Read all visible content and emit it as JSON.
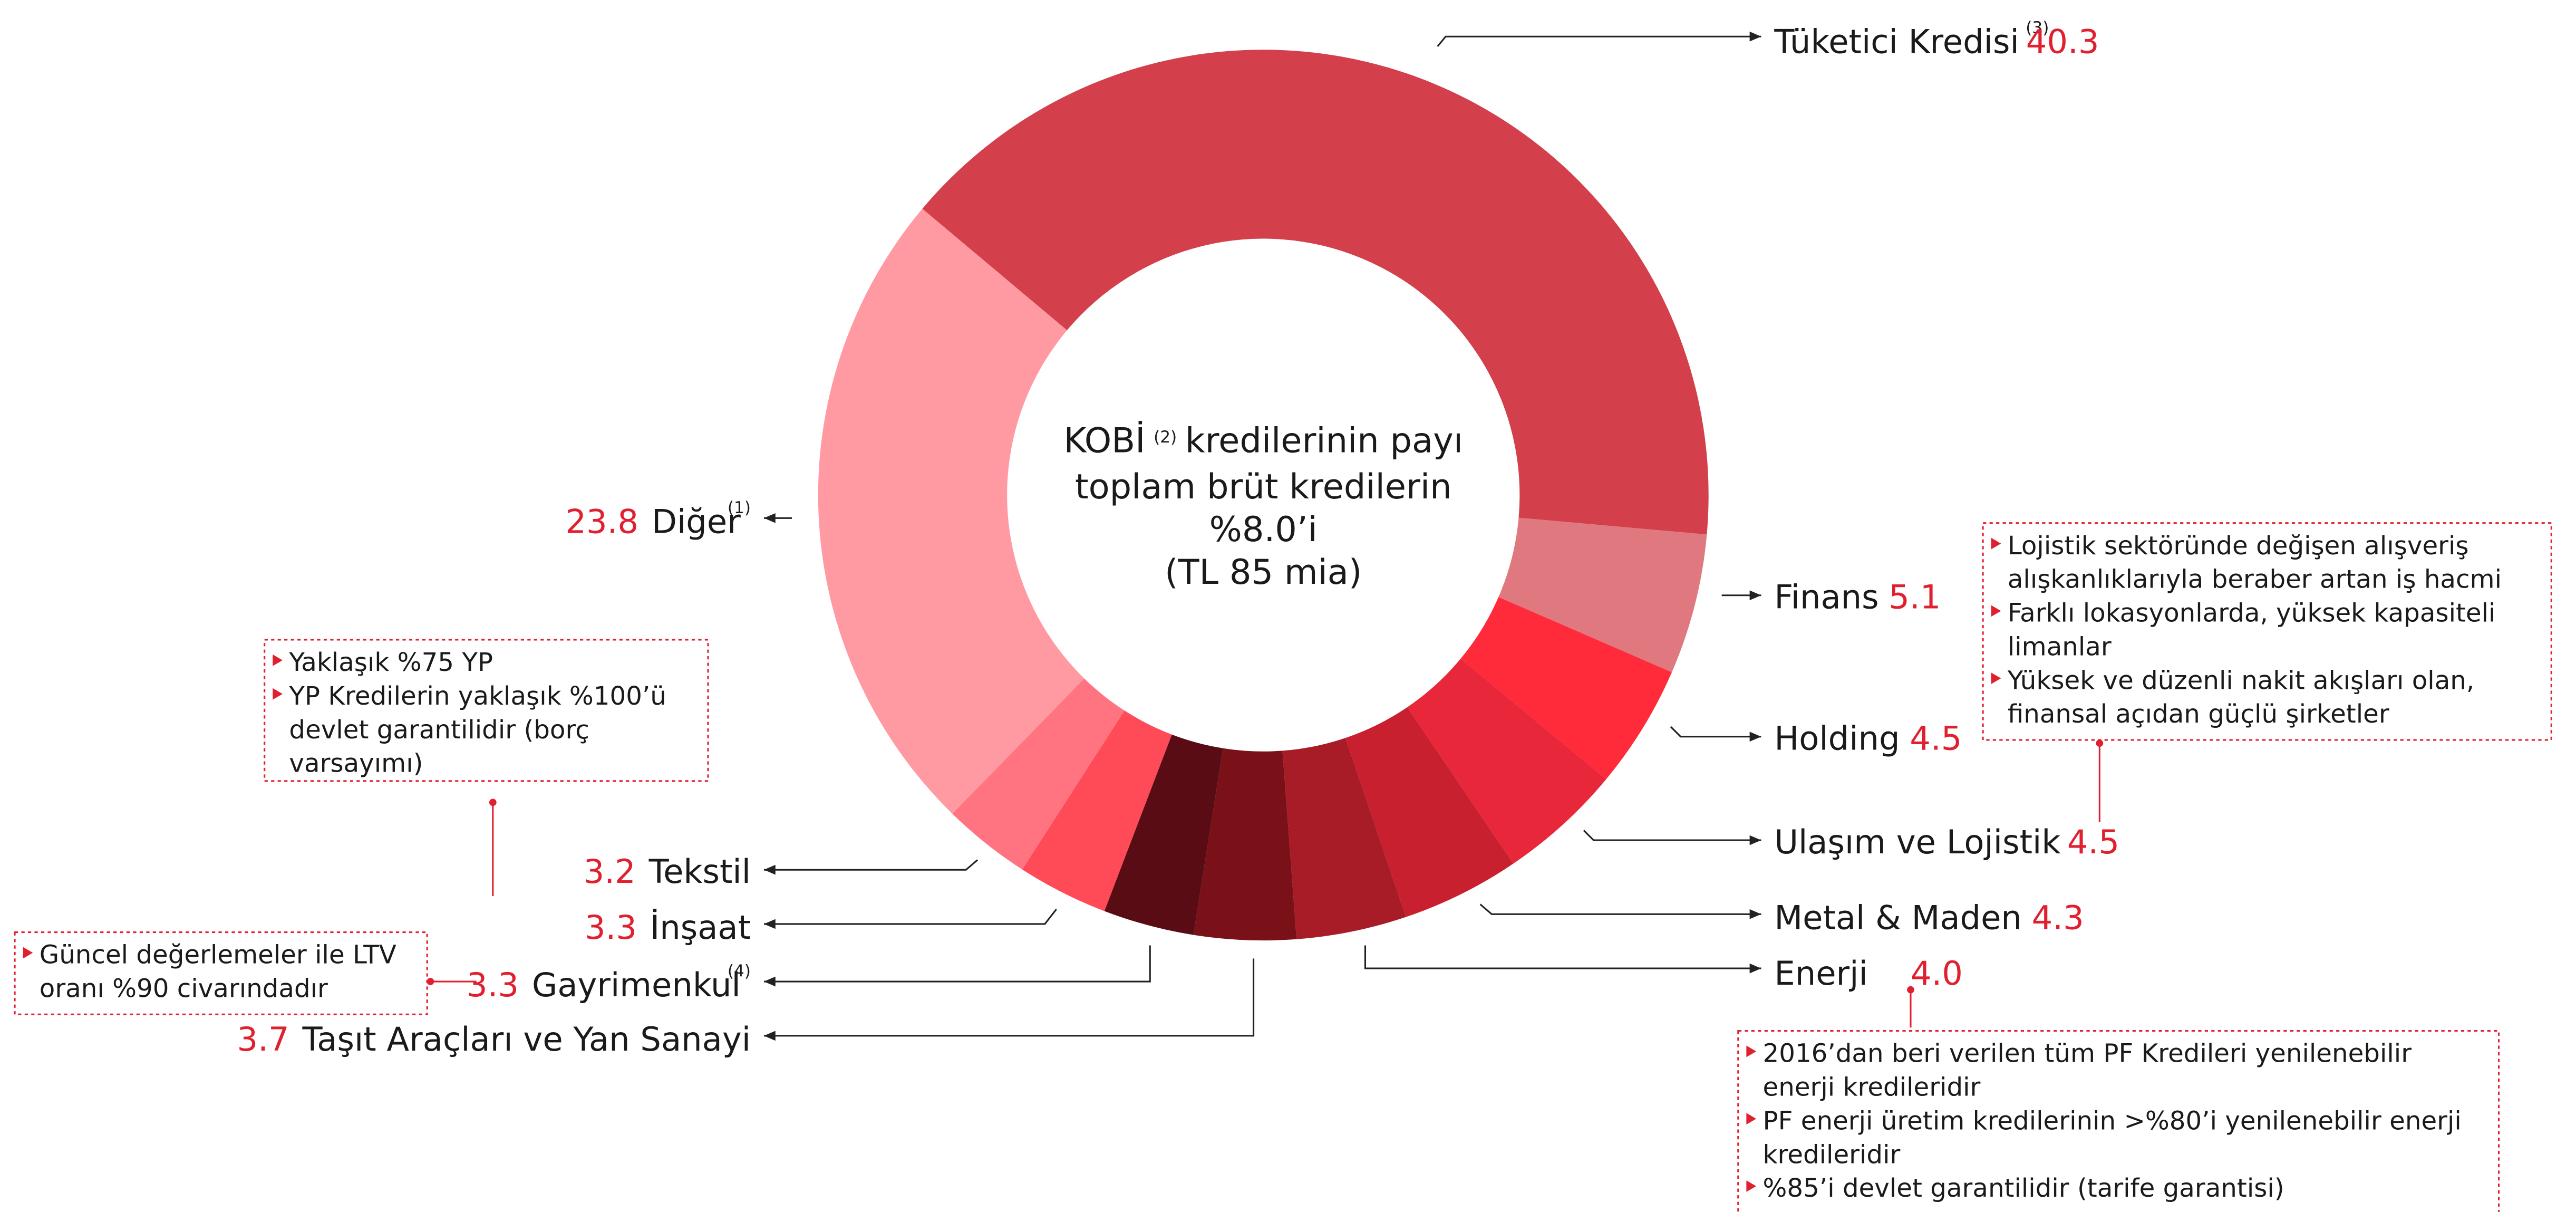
{
  "chart_data": {
    "type": "pie",
    "categories": [
      "Tüketici Kredisi",
      "Finans",
      "Holding",
      "Ulaşım ve Lojistik",
      "Metal & Maden",
      "Enerji",
      "Taşıt Araçları ve Yan Sanayi",
      "Gayrimenkul",
      "İnşaat",
      "Tekstil",
      "Diğer"
    ],
    "values": [
      40.3,
      5.1,
      4.5,
      4.5,
      4.3,
      4.0,
      3.7,
      3.3,
      3.3,
      3.2,
      23.8
    ],
    "value_labels": [
      "40.3",
      "5.1",
      "4.5",
      "4.5",
      "4.3",
      "4.0",
      "3.7",
      "3.3",
      "3.3",
      "3.2",
      "23.8"
    ],
    "footnote_marks": [
      "(3)",
      null,
      null,
      null,
      null,
      null,
      null,
      "(4)",
      null,
      null,
      "(1)"
    ],
    "colors": [
      "#d3404c",
      "#e07880",
      "#ff2a3a",
      "#e8283a",
      "#c8202e",
      "#a81c28",
      "#7a1018",
      "#5a0c14",
      "#ff4a58",
      "#ff7480",
      "#ff9aa2"
    ],
    "center_text": [
      "KOBİ",
      "(2)",
      "kredilerinin payı",
      "toplam brüt kredilerin",
      "%8.0’i",
      "(TL 85 mia)"
    ],
    "notes": [
      {
        "items": [
          [
            "Lojistik sektöründe değişen alışveriş",
            "alışkanlıklarıyla beraber artan iş hacmi"
          ],
          [
            "Farklı lokasyonlarda, yüksek kapasiteli",
            "limanlar"
          ],
          [
            "Yüksek ve düzenli nakit akışları olan,",
            "finansal açıdan güçlü şirketler"
          ]
        ]
      },
      {
        "items": [
          [
            "Yaklaşık %75 YP"
          ],
          [
            "YP Kredilerin yaklaşık %100’ü",
            "devlet garantilidir (borç",
            "varsayımı)"
          ]
        ]
      },
      {
        "items": [
          [
            "Güncel değerlemeler ile LTV",
            "oranı %90 civarındadır"
          ]
        ]
      },
      {
        "items": [
          [
            "2016’dan beri verilen tüm PF Kredileri yenilenebilir",
            "enerji kredileridir"
          ],
          [
            "PF enerji üretim kredilerinin >%80’i yenilenebilir enerji",
            "kredileridir"
          ],
          [
            "%85’i devlet garantilidir (tarife garantisi)"
          ]
        ]
      }
    ]
  }
}
